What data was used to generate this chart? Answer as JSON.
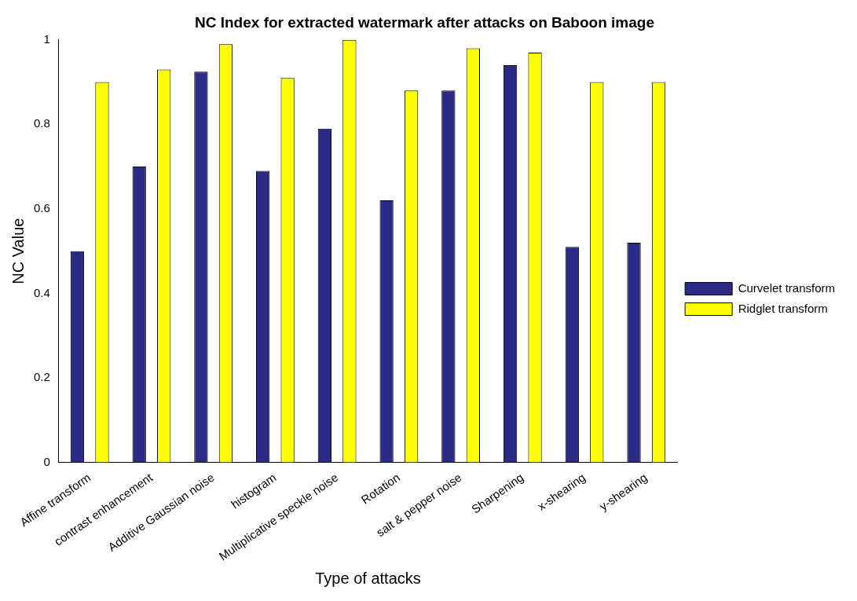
{
  "chart_data": {
    "type": "bar",
    "title": "NC Index for extracted watermark after attacks on Baboon image",
    "xlabel": "Type of attacks",
    "ylabel": "NC Value",
    "categories": [
      "Affine transform",
      "contrast enhancement",
      "Additive Gaussian noise",
      "histogram",
      "Multiplicative speckle noise",
      "Rotation",
      "salt & pepper noise",
      "Sharpening",
      "x-shearing",
      "y-shearing"
    ],
    "series": [
      {
        "name": "Curvelet transform",
        "color": "#2b2a85",
        "values": [
          0.5,
          0.7,
          0.925,
          0.69,
          0.79,
          0.62,
          0.88,
          0.94,
          0.51,
          0.52
        ]
      },
      {
        "name": "Ridglet transform",
        "color": "#ffff00",
        "values": [
          0.9,
          0.93,
          0.99,
          0.91,
          1.0,
          0.88,
          0.98,
          0.97,
          0.9,
          0.9
        ]
      }
    ],
    "ylim": [
      0,
      1
    ],
    "yticks": [
      0,
      0.2,
      0.4,
      0.6,
      0.8,
      1
    ],
    "grid": false,
    "legend": "right"
  }
}
